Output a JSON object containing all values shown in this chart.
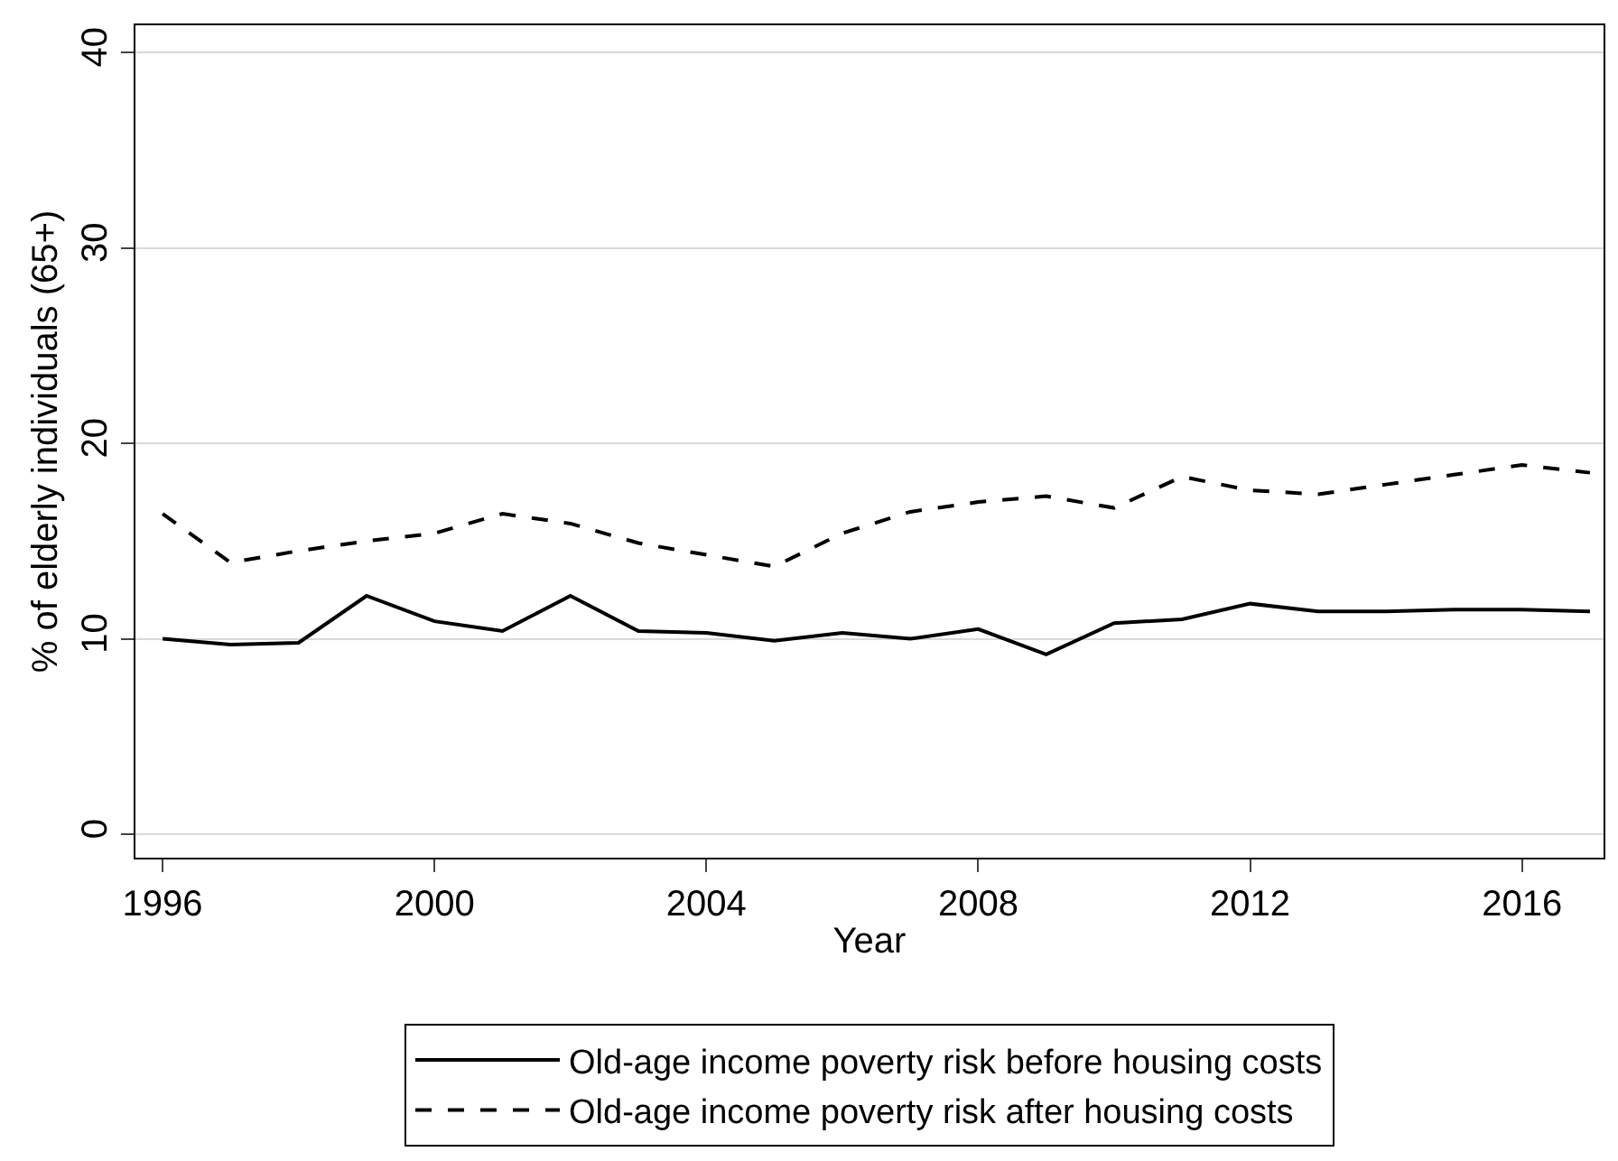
{
  "chart_data": {
    "type": "line",
    "xlabel": "Year",
    "ylabel": "% of elderly individuals (65+)",
    "x": [
      1996,
      1997,
      1998,
      1999,
      2000,
      2001,
      2002,
      2003,
      2004,
      2005,
      2006,
      2007,
      2008,
      2009,
      2010,
      2011,
      2012,
      2013,
      2014,
      2015,
      2016,
      2017
    ],
    "series": [
      {
        "name": "Old-age income poverty risk before housing costs",
        "color": "#000000",
        "line_style": "solid",
        "values": [
          10.0,
          9.7,
          9.8,
          12.2,
          10.9,
          10.4,
          12.2,
          10.4,
          10.3,
          9.9,
          10.3,
          10.0,
          10.5,
          9.2,
          10.8,
          11.0,
          11.8,
          11.4,
          11.4,
          11.5,
          11.5,
          11.4
        ]
      },
      {
        "name": "Old-age income poverty risk after housing costs",
        "color": "#000000",
        "line_style": "dashed",
        "values": [
          16.4,
          13.9,
          14.5,
          15.0,
          15.4,
          16.4,
          15.9,
          14.9,
          14.3,
          13.7,
          15.4,
          16.5,
          17.0,
          17.3,
          16.7,
          18.3,
          17.6,
          17.4,
          17.9,
          18.4,
          18.9,
          18.5
        ]
      }
    ],
    "xlim": [
      1995.6,
      2017.2
    ],
    "xticks": [
      1996,
      2000,
      2004,
      2008,
      2012,
      2016
    ],
    "ylim": [
      -1.2,
      41.4
    ],
    "yticks": [
      0,
      10,
      20,
      30,
      40
    ],
    "grid": "y",
    "legend": "bottom"
  }
}
